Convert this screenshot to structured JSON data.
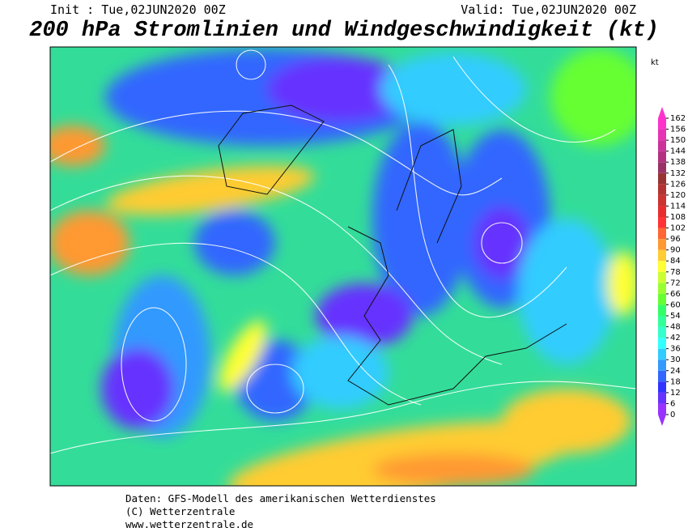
{
  "header": {
    "init": "Init : Tue,02JUN2020 00Z",
    "valid": "Valid: Tue,02JUN2020 00Z",
    "title": "200 hPa Stromlinien und Windgeschwindigkeit (kt)"
  },
  "legend": {
    "unit": "kt",
    "ticks": [
      0,
      6,
      12,
      18,
      24,
      30,
      36,
      42,
      48,
      54,
      60,
      66,
      72,
      78,
      84,
      90,
      96,
      102,
      108,
      114,
      120,
      126,
      132,
      138,
      144,
      150,
      156,
      162
    ],
    "colors": [
      "#9933ff",
      "#6633ff",
      "#3333ff",
      "#3366ff",
      "#3399ff",
      "#33ccff",
      "#33ffff",
      "#33ffcc",
      "#33ff99",
      "#33ff66",
      "#66ff33",
      "#99ff33",
      "#ccff33",
      "#ffff33",
      "#ffcc33",
      "#ff9933",
      "#ff6633",
      "#ff3333",
      "#e62e2e",
      "#cc3333",
      "#b33333",
      "#993333",
      "#993366",
      "#b33380",
      "#cc3399",
      "#e633b3",
      "#ff33cc"
    ]
  },
  "footer": {
    "lines": [
      "Daten: GFS-Modell des amerikanischen Wetterdienstes",
      "(C) Wetterzentrale",
      "www.wetterzentrale.de"
    ]
  }
}
